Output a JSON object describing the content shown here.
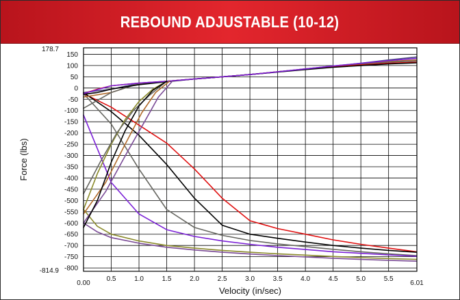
{
  "header": {
    "title": "REBOUND ADJUSTABLE (10-12)"
  },
  "colors": {
    "title_bar": "#d71f26",
    "grid": "#000000"
  },
  "chart_data": {
    "type": "line",
    "title": "REBOUND ADJUSTABLE (10-12)",
    "xlabel": "Velocity (in/sec)",
    "ylabel": "Force (lbs)",
    "xlim": [
      0.0,
      6.01
    ],
    "ylim": [
      -814.9,
      178.7
    ],
    "x_tick_labels": [
      "0.00",
      "0.5",
      "1.0",
      "1.5",
      "2.0",
      "2.5",
      "3.0",
      "3.5",
      "4.0",
      "4.5",
      "5.0",
      "5.5",
      "6.01"
    ],
    "x_ticks": [
      0.0,
      0.5,
      1.0,
      1.5,
      2.0,
      2.5,
      3.0,
      3.5,
      4.0,
      4.5,
      5.0,
      5.5,
      6.01
    ],
    "y_tick_labels": [
      "178.7",
      "150",
      "100",
      "50",
      "0",
      "-50",
      "-100",
      "-150",
      "-200",
      "-250",
      "-300",
      "-350",
      "-400",
      "-450",
      "-500",
      "-550",
      "-600",
      "-650",
      "-700",
      "-750",
      "-800",
      "-814.9"
    ],
    "y_ticks": [
      178.7,
      150,
      100,
      50,
      0,
      -50,
      -100,
      -150,
      -200,
      -250,
      -300,
      -350,
      -400,
      -450,
      -500,
      -550,
      -600,
      -650,
      -700,
      -750,
      -800,
      -814.9
    ],
    "grid": true,
    "legend": "none",
    "series": [
      {
        "color": "#e01010",
        "x": [
          0.0,
          0.5,
          1.0,
          1.5,
          2.0,
          2.5,
          3.0,
          3.5,
          4.0,
          4.5,
          5.0,
          5.5,
          6.0
        ],
        "y": [
          -25,
          -85,
          -165,
          -245,
          -360,
          -490,
          -590,
          -625,
          -650,
          -675,
          -695,
          -712,
          -728
        ]
      },
      {
        "color": "#000000",
        "x": [
          0.0,
          0.5,
          1.0,
          1.5,
          2.0,
          2.5,
          3.0,
          3.5,
          4.0,
          4.5,
          5.0,
          5.5,
          6.0
        ],
        "y": [
          -20,
          -105,
          -210,
          -340,
          -490,
          -610,
          -650,
          -668,
          -685,
          -700,
          -712,
          -722,
          -730
        ]
      },
      {
        "color": "#666660",
        "x": [
          0.0,
          0.5,
          1.0,
          1.5,
          2.0,
          2.5,
          3.0,
          3.5,
          4.0,
          4.5,
          5.0,
          5.5,
          6.0
        ],
        "y": [
          -25,
          -160,
          -360,
          -540,
          -620,
          -655,
          -678,
          -693,
          -705,
          -717,
          -728,
          -737,
          -745
        ]
      },
      {
        "color": "#7a1fd6",
        "x": [
          0.0,
          0.5,
          1.0,
          1.5,
          2.0,
          2.5,
          3.0,
          3.5,
          4.0,
          4.5,
          5.0,
          5.5,
          6.0
        ],
        "y": [
          -120,
          -420,
          -560,
          -630,
          -660,
          -680,
          -695,
          -708,
          -718,
          -728,
          -735,
          -742,
          -748
        ]
      },
      {
        "color": "#8a8a2a",
        "x": [
          0.0,
          0.25,
          0.5,
          1.0,
          1.5,
          2.0,
          2.5,
          3.0,
          3.5,
          4.0,
          4.5,
          5.0,
          5.5,
          6.0
        ],
        "y": [
          -540,
          -615,
          -650,
          -680,
          -700,
          -712,
          -722,
          -730,
          -737,
          -743,
          -749,
          -754,
          -758,
          -762
        ]
      },
      {
        "color": "#7a4a96",
        "x": [
          0.0,
          0.25,
          0.5,
          1.0,
          1.5,
          2.0,
          2.5,
          3.0,
          3.5,
          4.0,
          4.5,
          5.0,
          5.5,
          6.0
        ],
        "y": [
          -600,
          -640,
          -665,
          -690,
          -708,
          -720,
          -730,
          -738,
          -745,
          -751,
          -757,
          -762,
          -766,
          -770
        ]
      },
      {
        "color": "#4a4a7a",
        "x": [
          0.0,
          0.5,
          0.75,
          1.0,
          1.25,
          1.5,
          2.0,
          2.5,
          3.0,
          3.5,
          4.0,
          4.5,
          5.0,
          5.5,
          6.0
        ],
        "y": [
          -20,
          -5,
          8,
          20,
          25,
          30,
          40,
          50,
          60,
          72,
          85,
          98,
          110,
          125,
          138
        ]
      },
      {
        "color": "#b06a2a",
        "x": [
          0.0,
          0.5,
          0.75,
          1.0,
          1.25,
          1.5,
          2.0,
          2.5,
          3.0,
          3.5,
          4.0,
          4.5,
          5.0,
          5.5,
          6.0
        ],
        "y": [
          -40,
          -20,
          0,
          20,
          25,
          30,
          40,
          50,
          60,
          72,
          85,
          97,
          108,
          118,
          125
        ]
      },
      {
        "color": "#666660",
        "x": [
          0.0,
          0.5,
          1.0,
          1.5,
          2.0,
          2.5,
          3.0,
          3.5,
          4.0,
          4.5,
          5.0,
          5.5,
          6.0
        ],
        "y": [
          -90,
          -20,
          20,
          30,
          40,
          50,
          60,
          72,
          84,
          96,
          106,
          115,
          120
        ]
      },
      {
        "color": "#e01010",
        "x": [
          0.0,
          0.25,
          0.5,
          1.0,
          1.5,
          2.0,
          2.5,
          3.0,
          3.5,
          4.0,
          4.5,
          5.0,
          5.5,
          6.0
        ],
        "y": [
          -25,
          -5,
          10,
          22,
          30,
          40,
          50,
          60,
          72,
          83,
          94,
          103,
          110,
          115
        ]
      },
      {
        "color": "#000000",
        "x": [
          0.0,
          0.25,
          0.5,
          1.0,
          1.5,
          2.0,
          2.5,
          3.0,
          3.5,
          4.0,
          4.5,
          5.0,
          5.5,
          6.0
        ],
        "y": [
          -28,
          -20,
          -5,
          15,
          28,
          40,
          50,
          60,
          71,
          82,
          92,
          100,
          107,
          112
        ]
      },
      {
        "color": "#7a1fd6",
        "x": [
          0.0,
          0.5,
          1.0,
          1.5,
          2.0,
          2.5,
          3.0,
          3.5,
          4.0,
          4.5,
          5.0,
          5.5,
          6.0
        ],
        "y": [
          -25,
          10,
          22,
          30,
          40,
          50,
          60,
          72,
          85,
          98,
          110,
          122,
          132
        ]
      },
      {
        "color": "#8a8a2a",
        "x": [
          0.0,
          0.25,
          0.5,
          0.75,
          1.0,
          1.25,
          1.5
        ],
        "y": [
          -540,
          -380,
          -250,
          -140,
          -60,
          -5,
          30
        ]
      },
      {
        "color": "#666660",
        "x": [
          0.0,
          0.3,
          0.6,
          0.9,
          1.2,
          1.5
        ],
        "y": [
          -470,
          -330,
          -200,
          -100,
          -30,
          30
        ]
      },
      {
        "color": "#7a4a96",
        "x": [
          0.0,
          0.4,
          0.8,
          1.1,
          1.35,
          1.6
        ],
        "y": [
          -600,
          -460,
          -280,
          -150,
          -40,
          30
        ]
      },
      {
        "color": "#b06a2a",
        "x": [
          0.0,
          0.4,
          0.75,
          1.05,
          1.3,
          1.55
        ],
        "y": [
          -560,
          -420,
          -250,
          -110,
          -20,
          30
        ]
      },
      {
        "color": "#000000",
        "x": [
          0.0,
          0.25,
          0.5,
          0.75,
          1.0,
          1.25,
          1.5
        ],
        "y": [
          -620,
          -500,
          -330,
          -190,
          -80,
          -10,
          30
        ]
      }
    ]
  }
}
